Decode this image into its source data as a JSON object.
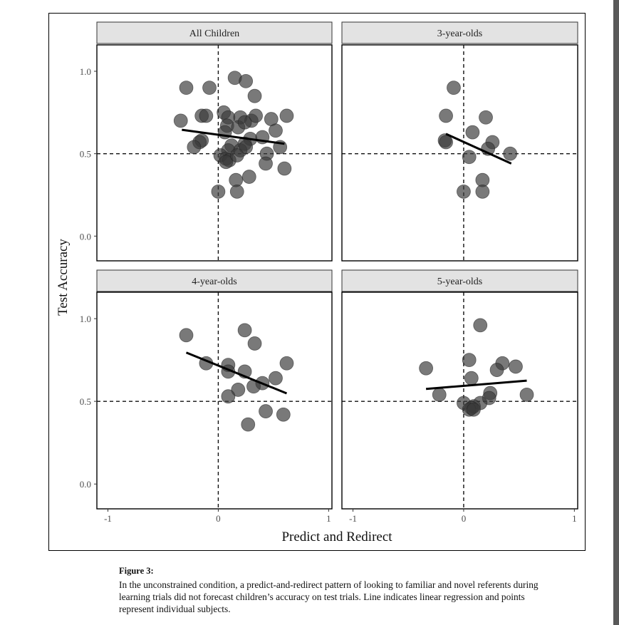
{
  "chart_data": {
    "type": "scatter",
    "xlabel": "Predict and Redirect",
    "ylabel": "Test Accuracy",
    "xlim": [
      -1.1,
      1.03
    ],
    "ylim": [
      -0.15,
      1.16
    ],
    "xticks": [
      -1,
      0,
      1
    ],
    "xtick_labels": [
      "-1",
      "0",
      "1"
    ],
    "yticks": [
      0.0,
      0.5,
      1.0
    ],
    "ytick_labels": [
      "0.0",
      "0.5",
      "1.0"
    ],
    "reference_lines": {
      "x": 0,
      "y": 0.5
    },
    "grid": false,
    "point_color": "#3a3a3a",
    "strip_color": "#e3e3e3",
    "panels": [
      {
        "title": "All Children",
        "regression": {
          "x": [
            -0.33,
            0.6
          ],
          "y": [
            0.645,
            0.56
          ]
        },
        "points": [
          [
            -0.29,
            0.9
          ],
          [
            -0.08,
            0.9
          ],
          [
            0.15,
            0.96
          ],
          [
            0.25,
            0.94
          ],
          [
            0.33,
            0.85
          ],
          [
            -0.34,
            0.7
          ],
          [
            -0.15,
            0.73
          ],
          [
            -0.11,
            0.73
          ],
          [
            0.05,
            0.75
          ],
          [
            0.09,
            0.72
          ],
          [
            0.2,
            0.72
          ],
          [
            0.3,
            0.7
          ],
          [
            0.34,
            0.73
          ],
          [
            0.48,
            0.71
          ],
          [
            0.62,
            0.73
          ],
          [
            0.08,
            0.67
          ],
          [
            0.18,
            0.66
          ],
          [
            0.24,
            0.69
          ],
          [
            0.52,
            0.64
          ],
          [
            0.06,
            0.63
          ],
          [
            0.29,
            0.59
          ],
          [
            0.4,
            0.6
          ],
          [
            -0.15,
            0.58
          ],
          [
            -0.17,
            0.57
          ],
          [
            0.12,
            0.55
          ],
          [
            0.24,
            0.56
          ],
          [
            -0.22,
            0.54
          ],
          [
            0.09,
            0.52
          ],
          [
            0.2,
            0.52
          ],
          [
            0.25,
            0.54
          ],
          [
            0.56,
            0.54
          ],
          [
            0.44,
            0.5
          ],
          [
            0.02,
            0.49
          ],
          [
            0.07,
            0.47
          ],
          [
            0.1,
            0.46
          ],
          [
            0.07,
            0.45
          ],
          [
            0.17,
            0.49
          ],
          [
            0.43,
            0.44
          ],
          [
            0.6,
            0.41
          ],
          [
            0.28,
            0.36
          ],
          [
            0.16,
            0.34
          ],
          [
            0.0,
            0.27
          ],
          [
            0.17,
            0.27
          ]
        ]
      },
      {
        "title": "3-year-olds",
        "regression": {
          "x": [
            -0.16,
            0.43
          ],
          "y": [
            0.62,
            0.44
          ]
        },
        "points": [
          [
            -0.09,
            0.9
          ],
          [
            -0.16,
            0.73
          ],
          [
            0.2,
            0.72
          ],
          [
            0.08,
            0.63
          ],
          [
            0.26,
            0.57
          ],
          [
            -0.17,
            0.58
          ],
          [
            -0.16,
            0.57
          ],
          [
            0.22,
            0.53
          ],
          [
            0.42,
            0.5
          ],
          [
            0.05,
            0.48
          ],
          [
            0.17,
            0.34
          ],
          [
            0.0,
            0.27
          ],
          [
            0.17,
            0.27
          ]
        ]
      },
      {
        "title": "4-year-olds",
        "regression": {
          "x": [
            -0.29,
            0.62
          ],
          "y": [
            0.795,
            0.548
          ]
        },
        "points": [
          [
            -0.29,
            0.9
          ],
          [
            0.24,
            0.93
          ],
          [
            0.33,
            0.85
          ],
          [
            -0.11,
            0.73
          ],
          [
            0.09,
            0.72
          ],
          [
            0.62,
            0.73
          ],
          [
            0.09,
            0.68
          ],
          [
            0.24,
            0.68
          ],
          [
            0.52,
            0.64
          ],
          [
            0.4,
            0.61
          ],
          [
            0.32,
            0.59
          ],
          [
            0.18,
            0.57
          ],
          [
            0.09,
            0.53
          ],
          [
            0.43,
            0.44
          ],
          [
            0.59,
            0.42
          ],
          [
            0.27,
            0.36
          ]
        ]
      },
      {
        "title": "5-year-olds",
        "regression": {
          "x": [
            -0.34,
            0.57
          ],
          "y": [
            0.575,
            0.625
          ]
        },
        "points": [
          [
            0.15,
            0.96
          ],
          [
            -0.34,
            0.7
          ],
          [
            0.05,
            0.75
          ],
          [
            0.35,
            0.73
          ],
          [
            0.47,
            0.71
          ],
          [
            0.3,
            0.69
          ],
          [
            0.07,
            0.64
          ],
          [
            -0.22,
            0.54
          ],
          [
            0.24,
            0.55
          ],
          [
            0.57,
            0.54
          ],
          [
            0.23,
            0.52
          ],
          [
            0.0,
            0.49
          ],
          [
            0.15,
            0.49
          ],
          [
            0.09,
            0.47
          ],
          [
            0.07,
            0.46
          ],
          [
            0.05,
            0.45
          ],
          [
            0.09,
            0.45
          ]
        ]
      }
    ]
  },
  "caption": {
    "title": "Figure 3:",
    "text": "In the unconstrained condition, a predict-and-redirect pattern of looking to familiar and novel referents during learning trials did not forecast children’s accuracy on test trials. Line indicates linear regression and points represent individual subjects."
  }
}
